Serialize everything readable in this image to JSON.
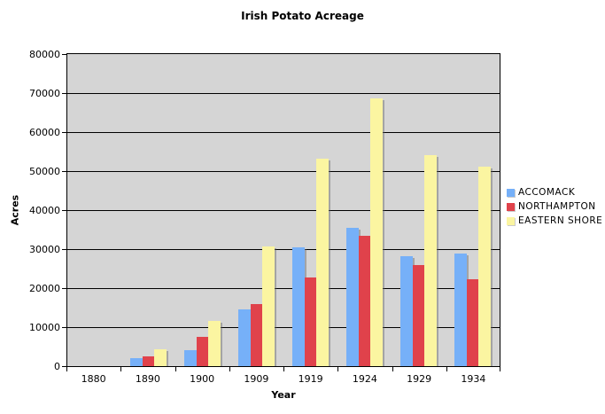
{
  "chart_data": {
    "type": "bar",
    "title": "Irish Potato Acreage",
    "xlabel": "Year",
    "ylabel": "Acres",
    "categories": [
      "1880",
      "1890",
      "1900",
      "1909",
      "1919",
      "1924",
      "1929",
      "1934"
    ],
    "series": [
      {
        "name": "ACCOMACK",
        "color": "#76B0F8",
        "values": [
          0,
          2000,
          4000,
          14500,
          30500,
          35400,
          28200,
          28800
        ]
      },
      {
        "name": "NORTHAMPTON",
        "color": "#E0424B",
        "values": [
          0,
          2400,
          7500,
          16000,
          22700,
          33300,
          25900,
          22300
        ]
      },
      {
        "name": "EASTERN SHORE",
        "color": "#FBF5A1",
        "values": [
          0,
          4300,
          11500,
          30700,
          53200,
          68700,
          54100,
          51100
        ]
      }
    ],
    "ylim": [
      0,
      80000
    ],
    "ytick_step": 10000,
    "grid": true,
    "legend_position": "right",
    "plot_bg": "#D5D5D5",
    "gridline_color": "#000000"
  }
}
